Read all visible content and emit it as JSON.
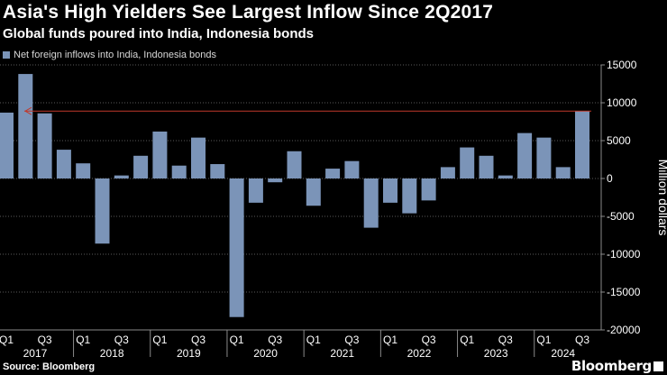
{
  "chart_data": {
    "type": "bar",
    "title": "Asia's High Yielders See Largest Inflow Since 2Q2017",
    "subtitle": "Global funds poured into India, Indonesia bonds",
    "legend": [
      "Net foreign inflows into India, Indonesia bonds"
    ],
    "ylabel": "Million dollars",
    "ylim": [
      -20000,
      15000
    ],
    "yticks": [
      15000,
      10000,
      5000,
      0,
      -5000,
      -10000,
      -15000,
      -20000
    ],
    "categories": [
      "Q1 2017",
      "Q2 2017",
      "Q3 2017",
      "Q4 2017",
      "Q1 2018",
      "Q2 2018",
      "Q3 2018",
      "Q4 2018",
      "Q1 2019",
      "Q2 2019",
      "Q3 2019",
      "Q4 2019",
      "Q1 2020",
      "Q2 2020",
      "Q3 2020",
      "Q4 2020",
      "Q1 2021",
      "Q2 2021",
      "Q3 2021",
      "Q4 2021",
      "Q1 2022",
      "Q2 2022",
      "Q3 2022",
      "Q4 2022",
      "Q1 2023",
      "Q2 2023",
      "Q3 2023",
      "Q4 2023",
      "Q1 2024",
      "Q2 2024",
      "Q3 2024"
    ],
    "series": [
      {
        "name": "Net foreign inflows into India, Indonesia bonds",
        "color": "#7b94b8",
        "values": [
          8700,
          13800,
          8600,
          3800,
          2000,
          -8600,
          400,
          3000,
          6200,
          1700,
          5400,
          1900,
          -18300,
          -3200,
          -500,
          3600,
          -3600,
          1300,
          2300,
          -6500,
          -3200,
          -4600,
          -2900,
          1500,
          4100,
          3000,
          400,
          6000,
          5400,
          1500,
          8900
        ]
      }
    ],
    "reference_line": {
      "value": 8900,
      "color": "#c0392b"
    },
    "x_quarter_labels": [
      "Q1",
      "Q3"
    ],
    "x_year_labels": [
      "2017",
      "2018",
      "2019",
      "2020",
      "2021",
      "2022",
      "2023",
      "2024"
    ],
    "grid": true
  },
  "source": "Source: Bloomberg",
  "brand": "Bloomberg"
}
